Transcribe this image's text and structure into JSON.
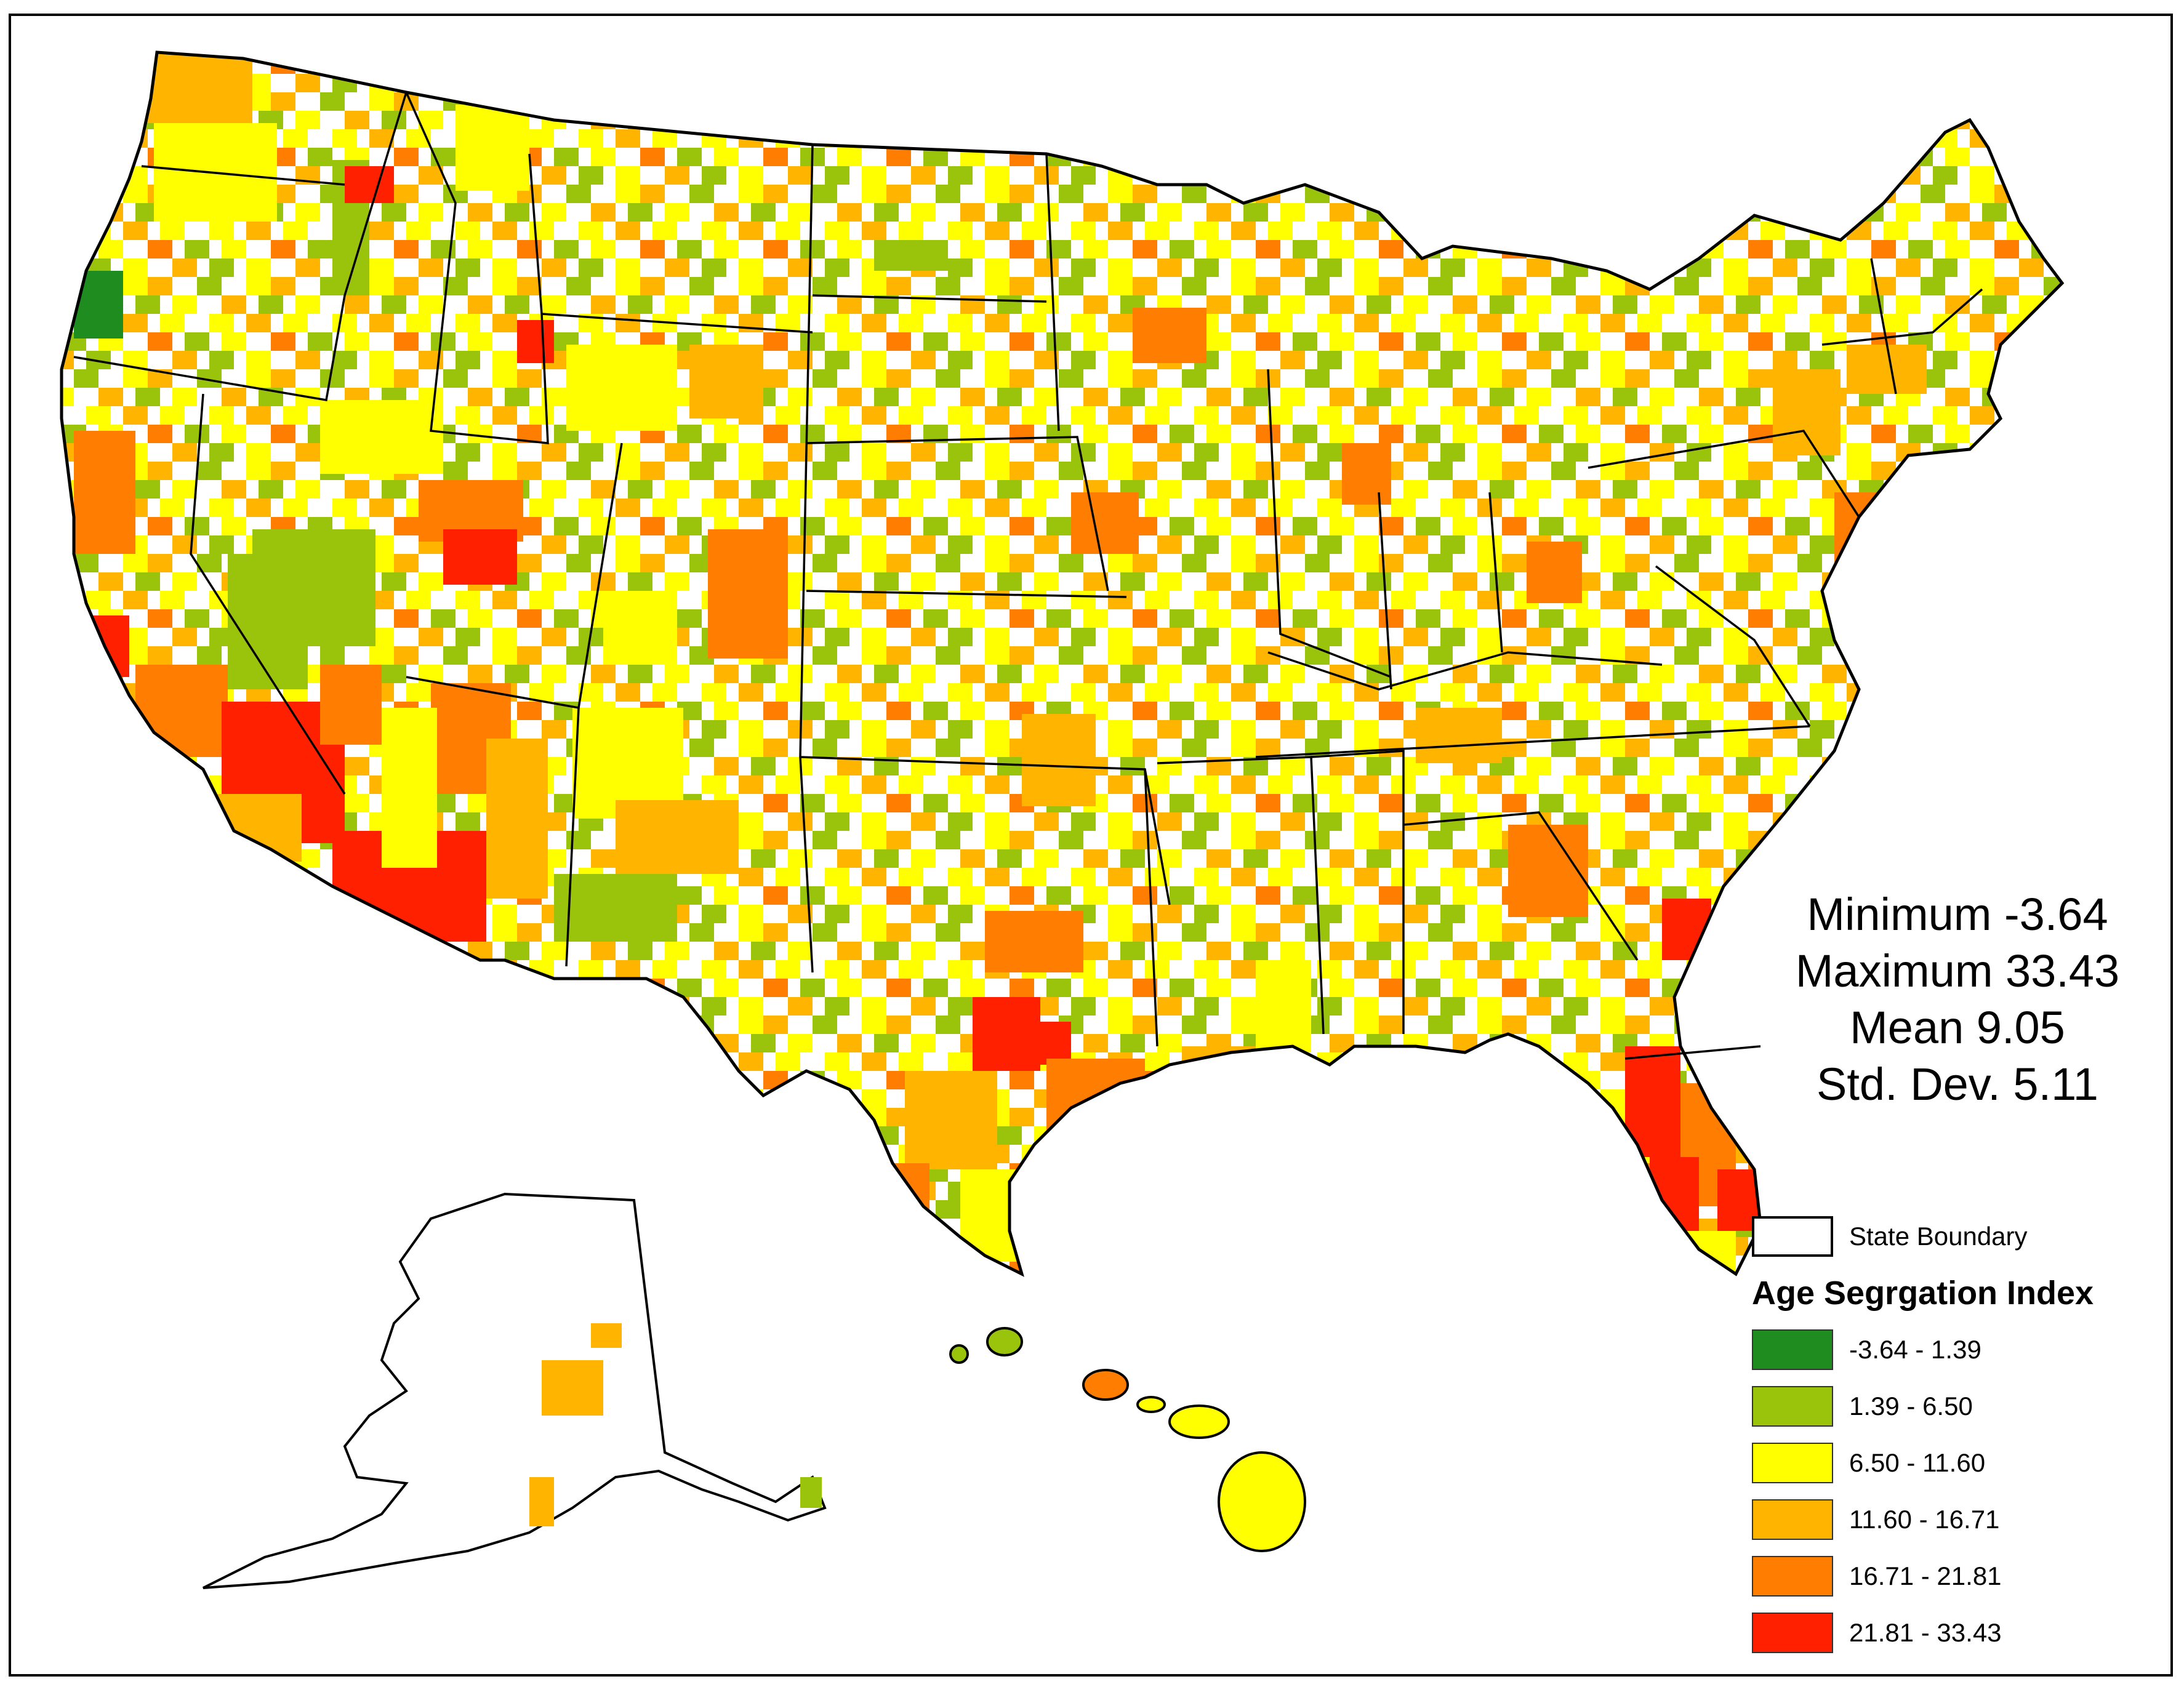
{
  "map": {
    "regions": [
      {
        "name": "Contiguous United States"
      },
      {
        "name": "Alaska"
      },
      {
        "name": "Hawaii"
      }
    ]
  },
  "stats": {
    "minimum": "Minimum -3.64",
    "maximum": "Maximum 33.43",
    "mean": "Mean 9.05",
    "std_dev": "Std. Dev. 5.11"
  },
  "legend": {
    "boundary_label": "State Boundary",
    "title": "Age Segrgation Index",
    "classes": [
      {
        "label": "-3.64 - 1.39",
        "color": "#1e8c1e"
      },
      {
        "label": "1.39 - 6.50",
        "color": "#9ac40c"
      },
      {
        "label": "6.50 - 11.60",
        "color": "#ffff00"
      },
      {
        "label": "11.60 - 16.71",
        "color": "#ffb400"
      },
      {
        "label": "16.71 - 21.81",
        "color": "#ff7d00"
      },
      {
        "label": "21.81 - 33.43",
        "color": "#ff2000"
      }
    ]
  }
}
